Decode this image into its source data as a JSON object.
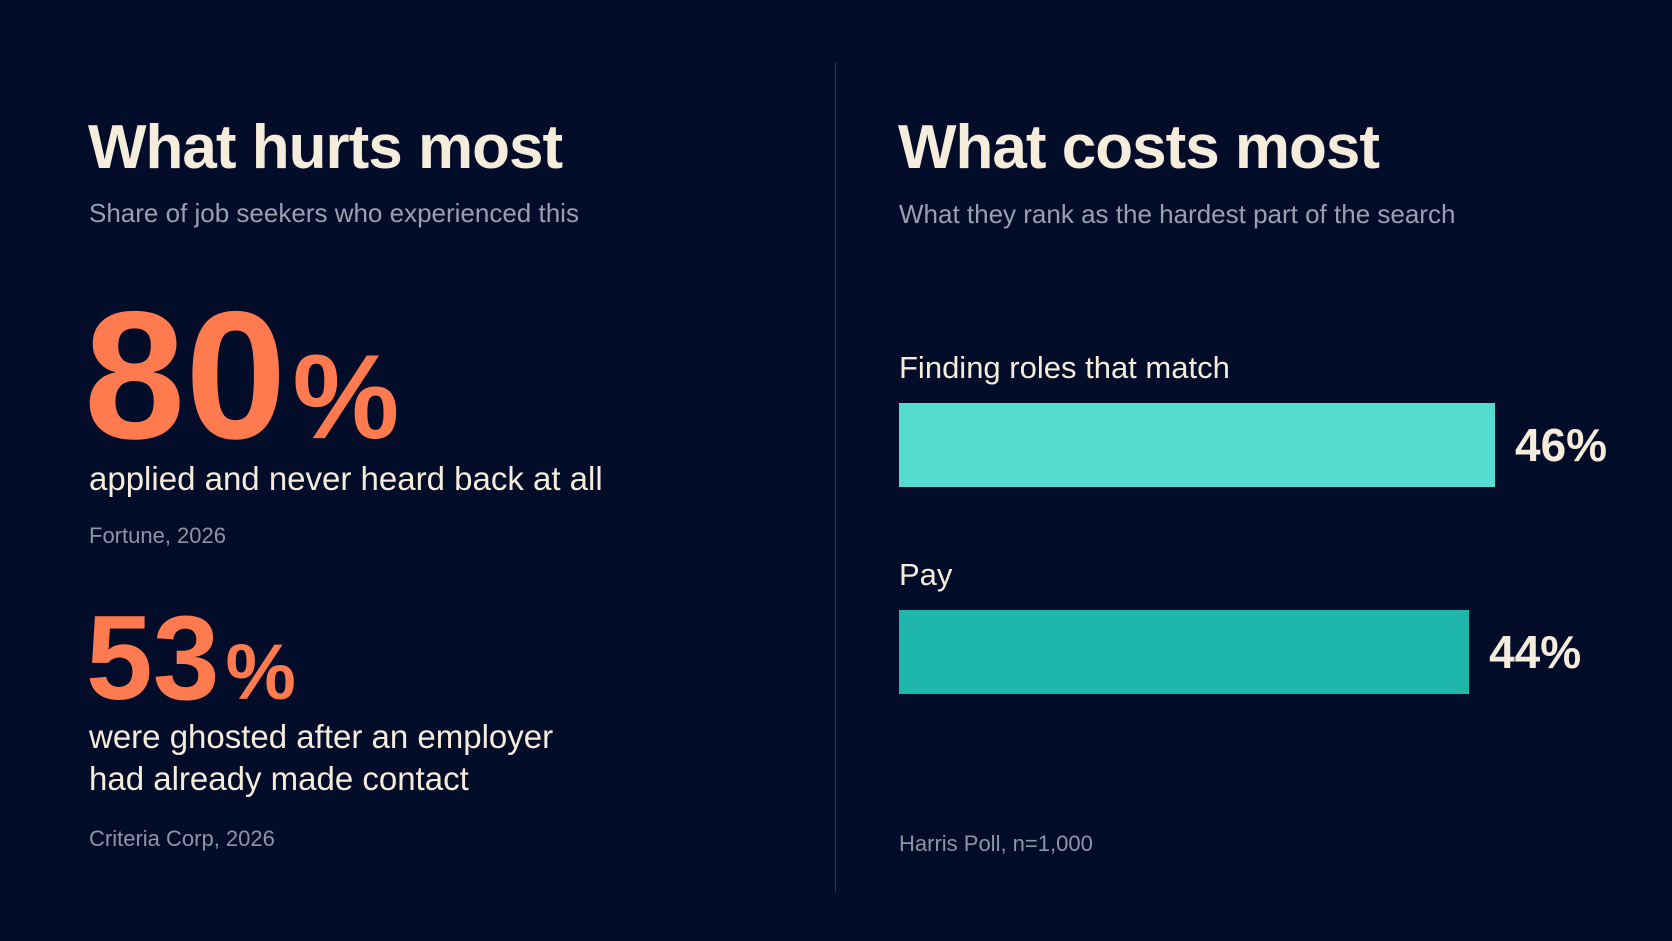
{
  "left_panel": {
    "title": "What hurts most",
    "subtitle": "Share of job seekers who experienced this",
    "stats": [
      {
        "value": "80",
        "unit": "%",
        "description": "applied and never heard back at all",
        "source": "Fortune, 2026"
      },
      {
        "value": "53",
        "unit": "%",
        "description": "were ghosted after an employer had already made contact",
        "source": "Criteria Corp, 2026"
      }
    ]
  },
  "right_panel": {
    "title": "What costs most",
    "subtitle": "What they rank as the hardest part of the search",
    "source": "Harris Poll, n=1,000"
  },
  "chart_data": {
    "type": "bar",
    "orientation": "horizontal",
    "title": "What costs most",
    "subtitle": "What they rank as the hardest part of the search",
    "categories": [
      "Finding roles that match",
      "Pay"
    ],
    "values": [
      46,
      44
    ],
    "value_labels": [
      "46%",
      "44%"
    ],
    "colors": [
      "#55dccf",
      "#1fb6ab"
    ],
    "xlim": [
      0,
      50
    ],
    "grid": false,
    "source": "Harris Poll, n=1,000"
  },
  "colors": {
    "background": "#030c28",
    "accent": "#ff7a4f",
    "text": "#f6ecdb",
    "muted": "#9aa0b3",
    "divider": "#1e3a78"
  }
}
